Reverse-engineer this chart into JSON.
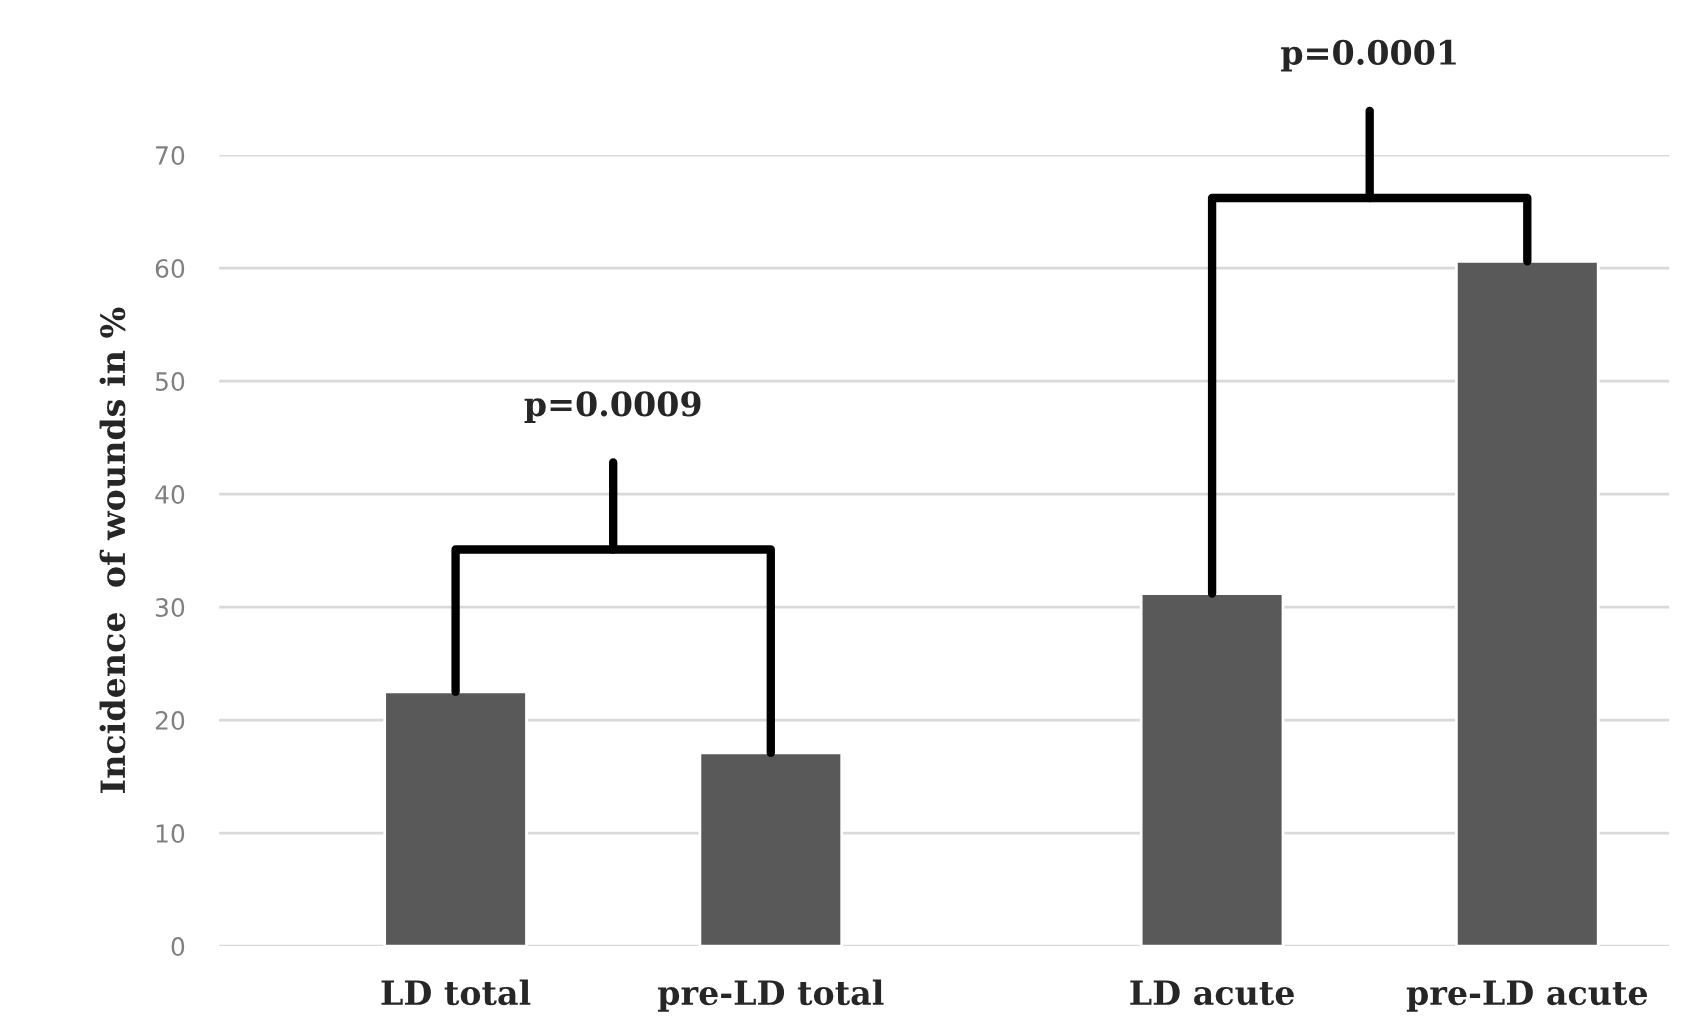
{
  "chart_data": {
    "type": "bar",
    "ylabel": "Incidence  of wounds in %",
    "categories": [
      "LD total",
      "pre-LD total",
      "LD acute",
      "pre-LD acute"
    ],
    "values": [
      22.5,
      17.1,
      31.2,
      60.6
    ],
    "color": "#595959",
    "ylim": [
      0,
      70
    ],
    "yticks": [
      0,
      10,
      20,
      30,
      40,
      50,
      60,
      70
    ],
    "grid": "y",
    "annotations": [
      "p=0.0009",
      "p=0.0001"
    ]
  }
}
